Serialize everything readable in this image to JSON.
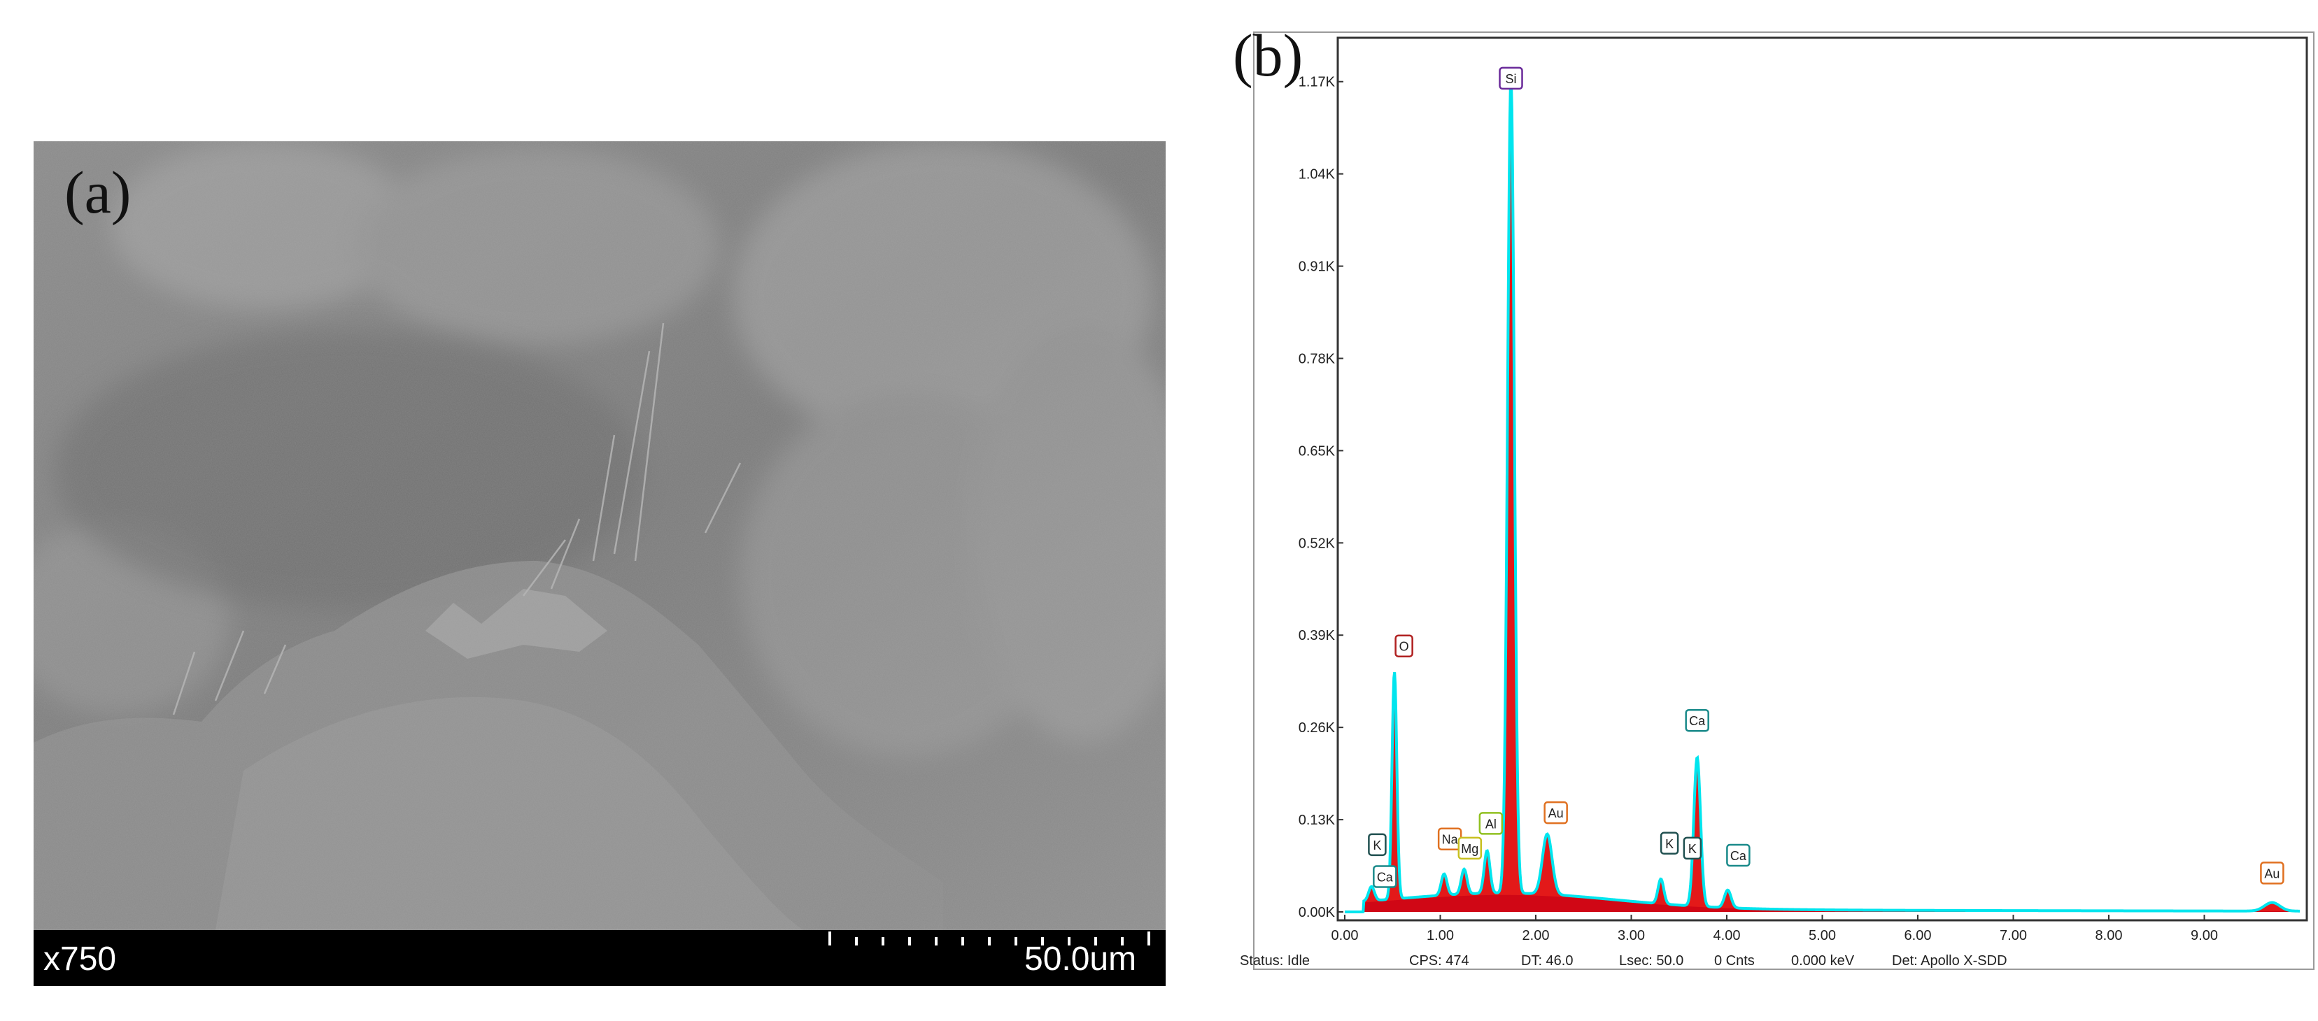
{
  "panels": {
    "a_label": "(a)",
    "b_label": "(b)"
  },
  "sem": {
    "magnification": "x750",
    "scale_bar_label": "50.0um"
  },
  "chart_data": {
    "type": "line",
    "title": "",
    "xlabel": "",
    "ylabel": "",
    "xlim": [
      0,
      10
    ],
    "ylim": [
      0,
      1.22
    ],
    "x_ticks": [
      0,
      1,
      2,
      3,
      4,
      5,
      6,
      7,
      8,
      9
    ],
    "x_tick_labels": [
      "0.00",
      "1.00",
      "2.00",
      "3.00",
      "4.00",
      "5.00",
      "6.00",
      "7.00",
      "8.00",
      "9.00"
    ],
    "y_ticks": [
      0,
      0.13,
      0.26,
      0.39,
      0.52,
      0.65,
      0.78,
      0.91,
      1.04,
      1.17
    ],
    "y_tick_labels": [
      "0.00K",
      "0.13K",
      "0.26K",
      "0.39K",
      "0.52K",
      "0.65K",
      "0.78K",
      "0.91K",
      "1.04K",
      "1.17K"
    ],
    "series_color": "#00e5ee",
    "fill_color": "#e00000",
    "background_color": "#1a28c8",
    "peaks": [
      {
        "x": 0.28,
        "y": 0.02,
        "w": 0.03
      },
      {
        "x": 0.52,
        "y": 0.32,
        "w": 0.025
      },
      {
        "x": 1.04,
        "y": 0.03,
        "w": 0.03
      },
      {
        "x": 1.25,
        "y": 0.035,
        "w": 0.03
      },
      {
        "x": 1.49,
        "y": 0.06,
        "w": 0.03
      },
      {
        "x": 1.74,
        "y": 1.15,
        "w": 0.035
      },
      {
        "x": 2.12,
        "y": 0.085,
        "w": 0.05
      },
      {
        "x": 3.31,
        "y": 0.035,
        "w": 0.03
      },
      {
        "x": 3.69,
        "y": 0.21,
        "w": 0.035
      },
      {
        "x": 4.01,
        "y": 0.025,
        "w": 0.035
      },
      {
        "x": 9.71,
        "y": 0.012,
        "w": 0.08
      }
    ],
    "annotations": [
      {
        "label": "Si",
        "x": 1.74,
        "y": 1.16,
        "color": "#6a2a9a"
      },
      {
        "label": "O",
        "x": 0.62,
        "y": 0.36,
        "color": "#b02020"
      },
      {
        "label": "Ca",
        "x": 3.69,
        "y": 0.255,
        "color": "#1a8a8a"
      },
      {
        "label": "Au",
        "x": 2.21,
        "y": 0.125,
        "color": "#e07020"
      },
      {
        "label": "K",
        "x": 0.34,
        "y": 0.08,
        "color": "#205050"
      },
      {
        "label": "Ca",
        "x": 0.42,
        "y": 0.035,
        "color": "#1a8a8a"
      },
      {
        "label": "Na",
        "x": 1.1,
        "y": 0.088,
        "color": "#e07020"
      },
      {
        "label": "Mg",
        "x": 1.31,
        "y": 0.075,
        "color": "#c8c020"
      },
      {
        "label": "Al",
        "x": 1.53,
        "y": 0.11,
        "color": "#90c020"
      },
      {
        "label": "K",
        "x": 3.4,
        "y": 0.082,
        "color": "#205050"
      },
      {
        "label": "K",
        "x": 3.64,
        "y": 0.075,
        "color": "#205050"
      },
      {
        "label": "Ca",
        "x": 4.12,
        "y": 0.065,
        "color": "#1a8a8a"
      },
      {
        "label": "Au",
        "x": 9.71,
        "y": 0.04,
        "color": "#e07020"
      }
    ]
  },
  "eds_status": {
    "status": "Status: Idle",
    "cps": "CPS: 474",
    "dt": "DT: 46.0",
    "lsec": "Lsec: 50.0",
    "cnts": "0 Cnts",
    "kev": "0.000 keV",
    "det": "Det: Apollo X-SDD"
  }
}
